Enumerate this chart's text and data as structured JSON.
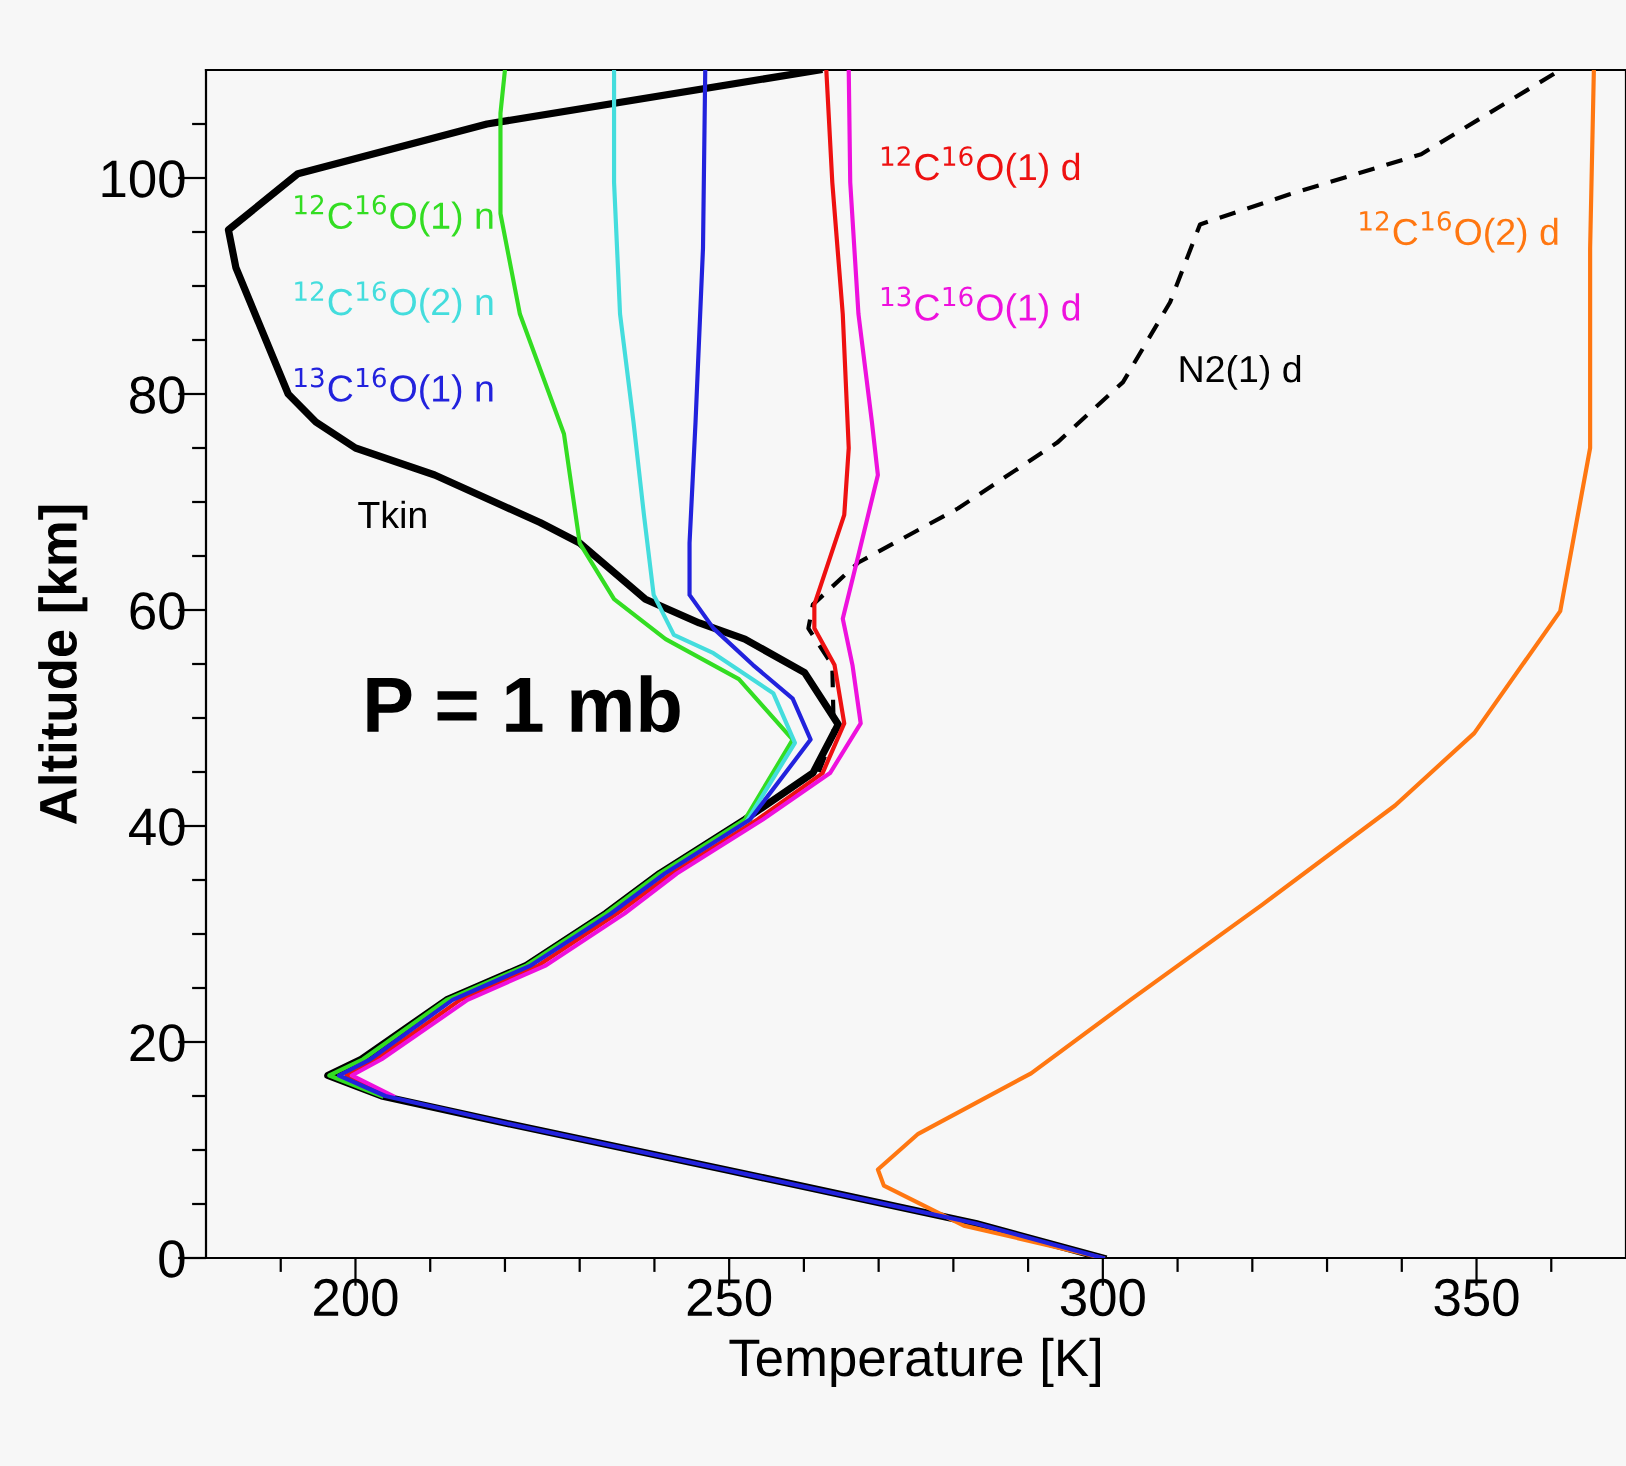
{
  "chart_data": {
    "type": "line",
    "xlabel": "Temperature [K]",
    "ylabel": "Altitude [km]",
    "xlim": [
      180,
      370
    ],
    "xticks": [
      {
        "value": 190,
        "label": null
      },
      200,
      {
        "value": 210,
        "label": null
      },
      {
        "value": 220,
        "label": null
      },
      {
        "value": 230,
        "label": null
      },
      {
        "value": 240,
        "label": null
      },
      250,
      {
        "value": 260,
        "label": null
      },
      {
        "value": 270,
        "label": null
      },
      {
        "value": 280,
        "label": null
      },
      {
        "value": 290,
        "label": null
      },
      300,
      {
        "value": 310,
        "label": null
      },
      {
        "value": 320,
        "label": null
      },
      {
        "value": 330,
        "label": null
      },
      {
        "value": 340,
        "label": null
      },
      350,
      {
        "value": 360,
        "label": null
      }
    ],
    "ylim": [
      0,
      110
    ],
    "yticks": [
      0,
      {
        "value": 5,
        "label": null
      },
      {
        "value": 10,
        "label": null
      },
      {
        "value": 15,
        "label": null
      },
      20,
      {
        "value": 25,
        "label": null
      },
      {
        "value": 30,
        "label": null
      },
      {
        "value": 35,
        "label": null
      },
      40,
      {
        "value": 45,
        "label": null
      },
      {
        "value": 50,
        "label": null
      },
      {
        "value": 55,
        "label": null
      },
      60,
      {
        "value": 65,
        "label": null
      },
      {
        "value": 70,
        "label": null
      },
      {
        "value": 75,
        "label": null
      },
      80,
      {
        "value": 85,
        "label": null
      },
      {
        "value": 90,
        "label": null
      },
      {
        "value": 95,
        "label": null
      },
      100,
      {
        "value": 105,
        "label": null
      }
    ],
    "grid": false,
    "legend": false,
    "annotations": [
      "P = 1 mb"
    ],
    "series": [
      {
        "name": "Tkin",
        "color": "#000000",
        "line_style": "solid",
        "x": [
          300,
          283,
          250,
          220,
          203.5,
          196.3,
          200.8,
          212.2,
          222.9,
          233.5,
          240.7,
          252.1,
          261.2,
          264.6,
          260.1,
          252.1,
          246,
          238.8,
          230,
          224.7,
          210.6,
          200,
          194.7,
          191,
          184,
          183,
          192.3,
          217.6,
          262
        ],
        "values": [
          0,
          3.2,
          8.1,
          12.5,
          15,
          16.9,
          18.4,
          23.9,
          27.1,
          31.9,
          35.6,
          40.6,
          44.9,
          49.4,
          54.2,
          57.3,
          58.8,
          61,
          66.2,
          68.1,
          72.5,
          75,
          77.4,
          80,
          91.7,
          95.2,
          100.4,
          105,
          110
        ]
      },
      {
        "name": "$^{12}$C$^{16}$O(1) n",
        "color": "#33dd22",
        "line_style": "solid",
        "x": [
          203.5,
          196.5,
          201,
          212.2,
          222.9,
          233.5,
          240.7,
          252.1,
          258.5,
          251.3,
          241.5,
          234.6,
          230,
          227.9,
          222,
          219.4,
          219.4,
          220
        ],
        "values": [
          15,
          16.9,
          18.4,
          23.9,
          27.1,
          31.9,
          35.6,
          40.6,
          48,
          53.6,
          57.3,
          61,
          66.2,
          76.3,
          87.4,
          96.7,
          106,
          110
        ]
      },
      {
        "name": "$^{12}$C$^{16}$O(2) n",
        "color": "#44dddd",
        "line_style": "solid",
        "x": [
          252.5,
          258.8,
          255.9,
          247.9,
          242.6,
          239.9,
          238.6,
          237.2,
          235.4,
          234.6,
          234.6
        ],
        "values": [
          40.6,
          47.7,
          52.3,
          56,
          57.7,
          61.4,
          68.8,
          77.4,
          87.4,
          99.6,
          110
        ]
      },
      {
        "name": "$^{13}$C$^{16}$O(1) n",
        "color": "#2222dd",
        "line_style": "solid",
        "x": [
          300,
          283,
          250,
          220,
          204,
          197.8,
          202,
          213,
          223.5,
          234.2,
          241.4,
          252.8,
          260.9,
          258.5,
          253.2,
          247.9,
          244.7,
          244.7,
          245.5,
          246.5,
          246.8
        ],
        "values": [
          0,
          3.2,
          8.1,
          12.5,
          15,
          16.9,
          18.4,
          23.9,
          27.1,
          31.9,
          35.6,
          40.6,
          48,
          51.8,
          54.9,
          58.3,
          61.4,
          66.2,
          77.4,
          93.5,
          110
        ]
      },
      {
        "name": "$^{12}$C$^{16}$O(1) d",
        "color": "#ee1111",
        "line_style": "solid",
        "x": [
          204.5,
          198.8,
          202.8,
          214,
          224.5,
          235,
          242.3,
          253.8,
          262.5,
          265.4,
          264.1,
          261.4,
          261.4,
          265.4,
          266,
          265.2,
          263.8,
          263
        ],
        "values": [
          15,
          16.9,
          18.4,
          23.9,
          27.1,
          31.9,
          35.6,
          40.6,
          44.9,
          49.5,
          54.9,
          58.3,
          60.5,
          68.8,
          75,
          87.4,
          99.6,
          110
        ]
      },
      {
        "name": "$^{13}$C$^{16}$O(1) d",
        "color": "#ee11dd",
        "line_style": "solid",
        "x": [
          205,
          199.5,
          203.5,
          215,
          225.5,
          236,
          243,
          254.5,
          263.5,
          267.6,
          266.5,
          265.2,
          267.3,
          269.9,
          269.1,
          267.3,
          266.2,
          266
        ],
        "values": [
          15,
          16.9,
          18.4,
          23.9,
          27.1,
          31.9,
          35.6,
          40.6,
          44.9,
          49.5,
          54.9,
          59.2,
          65.1,
          72.5,
          77.4,
          87.4,
          99.6,
          110
        ]
      },
      {
        "name": "N2(1) d",
        "color": "#000000",
        "line_style": "dashed",
        "x": [
          262,
          264,
          263.8,
          260.6,
          261.2,
          267.3,
          280.6,
          293.9,
          302.7,
          309,
          313,
          325,
          342.6,
          361.2
        ],
        "values": [
          45,
          48.6,
          54.9,
          58.3,
          60.5,
          64.4,
          69.4,
          75.5,
          81.1,
          88.5,
          95.7,
          98.5,
          102.2,
          110
        ]
      },
      {
        "name": "$^{12}$C$^{16}$O(2) d",
        "color": "#ff7711",
        "line_style": "solid",
        "x": [
          300,
          281.4,
          270.7,
          269.9,
          275.3,
          290.4,
          303.7,
          321.3,
          339.1,
          349.7,
          361.2,
          365.2,
          365.2,
          365.7
        ],
        "values": [
          0,
          3,
          6.7,
          8.2,
          11.5,
          17.1,
          23.9,
          32.7,
          41.9,
          48.6,
          59.9,
          75,
          93.5,
          110
        ]
      }
    ]
  }
}
